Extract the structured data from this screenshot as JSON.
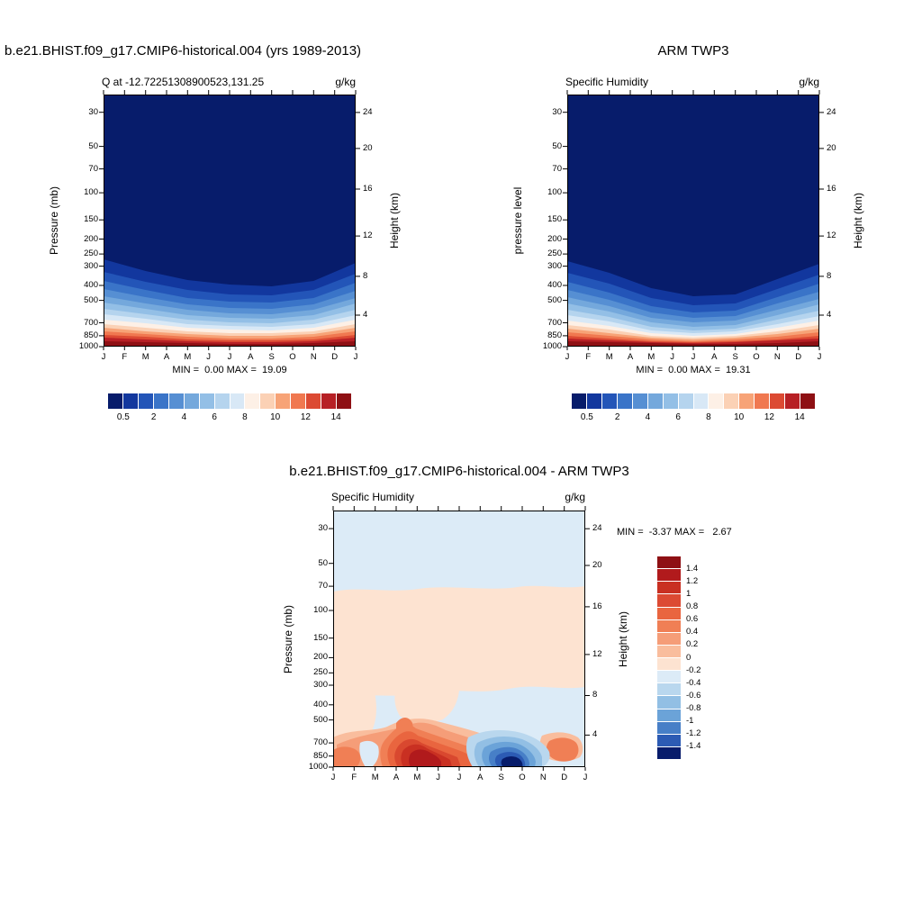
{
  "page": {
    "background": "#ffffff"
  },
  "charts": [
    {
      "title": "b.e21.BHIST.f09_g17.CMIP6-historical.004 (yrs 1989-2013)",
      "subtitle": "Q at -12.72251308900523,131.25",
      "units": "g/kg",
      "y_left_label": "Pressure (mb)",
      "y_right_label": "Height (km)",
      "pressure_ticks": [
        "30",
        "50",
        "70",
        "100",
        "150",
        "200",
        "250",
        "300",
        "400",
        "500",
        "700",
        "850",
        "1000"
      ],
      "height_ticks": [
        "24",
        "20",
        "16",
        "12",
        "8",
        "4"
      ],
      "month_ticks": [
        "J",
        "F",
        "M",
        "A",
        "M",
        "J",
        "J",
        "A",
        "S",
        "O",
        "N",
        "D",
        "J"
      ],
      "stats": "MIN =  0.00 MAX =  19.09",
      "colorbar": {
        "labels": [
          "0.5",
          "2",
          "4",
          "6",
          "8",
          "10",
          "12",
          "14"
        ],
        "colors": [
          "#071c6b",
          "#12379e",
          "#2355b8",
          "#3a74c8",
          "#568fd3",
          "#74a8dc",
          "#93bfe6",
          "#b5d4ee",
          "#d8e8f6",
          "#fdf0e6",
          "#fbd1b5",
          "#f7a377",
          "#f07850",
          "#dc4a33",
          "#b72025",
          "#8e1014"
        ]
      }
    },
    {
      "title": "ARM TWP3",
      "subtitle": "Specific Humidity",
      "units": "g/kg",
      "y_left_label": "pressure level",
      "y_right_label": "Height (km)",
      "pressure_ticks": [
        "30",
        "50",
        "70",
        "100",
        "150",
        "200",
        "250",
        "300",
        "400",
        "500",
        "700",
        "850",
        "1000"
      ],
      "height_ticks": [
        "24",
        "20",
        "16",
        "12",
        "8",
        "4"
      ],
      "month_ticks": [
        "J",
        "F",
        "M",
        "A",
        "M",
        "J",
        "J",
        "A",
        "S",
        "O",
        "N",
        "D",
        "J"
      ],
      "stats": "MIN =  0.00 MAX =  19.31",
      "colorbar": {
        "labels": [
          "0.5",
          "2",
          "4",
          "6",
          "8",
          "10",
          "12",
          "14"
        ],
        "colors": [
          "#071c6b",
          "#12379e",
          "#2355b8",
          "#3a74c8",
          "#568fd3",
          "#74a8dc",
          "#93bfe6",
          "#b5d4ee",
          "#d8e8f6",
          "#fdf0e6",
          "#fbd1b5",
          "#f7a377",
          "#f07850",
          "#dc4a33",
          "#b72025",
          "#8e1014"
        ]
      }
    },
    {
      "title": "b.e21.BHIST.f09_g17.CMIP6-historical.004 - ARM TWP3",
      "subtitle": "Specific Humidity",
      "units": "g/kg",
      "y_left_label": "Pressure (mb)",
      "y_right_label": "Height (km)",
      "pressure_ticks": [
        "30",
        "50",
        "70",
        "100",
        "150",
        "200",
        "250",
        "300",
        "400",
        "500",
        "700",
        "850",
        "1000"
      ],
      "height_ticks": [
        "24",
        "20",
        "16",
        "12",
        "8",
        "4"
      ],
      "month_ticks": [
        "J",
        "F",
        "M",
        "A",
        "M",
        "J",
        "J",
        "A",
        "S",
        "O",
        "N",
        "D",
        "J"
      ],
      "stats": "MIN =  -3.37 MAX =   2.67",
      "colorbar": {
        "labels": [
          "1.4",
          "1.2",
          "1",
          "0.8",
          "0.6",
          "0.4",
          "0.2",
          "0",
          "-0.2",
          "-0.4",
          "-0.6",
          "-0.8",
          "-1",
          "-1.2",
          "-1.4"
        ],
        "colors": [
          "#8e1014",
          "#b11a1c",
          "#c93022",
          "#dc4a33",
          "#e9653f",
          "#f07f55",
          "#f59d78",
          "#f9bd9d",
          "#fde3d1",
          "#dcebf7",
          "#b9d7ee",
          "#92bfe4",
          "#6ba3d8",
          "#477fc7",
          "#2c5bb4",
          "#071c6b"
        ]
      }
    }
  ],
  "chart_data": [
    {
      "type": "contour",
      "panel": "top-left",
      "title": "b.e21.BHIST.f09_g17.CMIP6-historical.004 (yrs 1989-2013)",
      "field": "Q at -12.72251308900523,131.25",
      "units": "g/kg",
      "x_ticks": [
        "J",
        "F",
        "M",
        "A",
        "M",
        "J",
        "J",
        "A",
        "S",
        "O",
        "N",
        "D",
        "J"
      ],
      "ylabel_left": "Pressure (mb)",
      "y_ticks_pressure_mb": [
        30,
        50,
        70,
        100,
        150,
        200,
        250,
        300,
        400,
        500,
        700,
        850,
        1000
      ],
      "y_scale": "log",
      "y_inverted": true,
      "ylabel_right": "Height (km)",
      "y_ticks_height_km": [
        24,
        20,
        16,
        12,
        8,
        4
      ],
      "min": 0.0,
      "max": 19.09,
      "contour_levels": [
        0.5,
        1,
        2,
        3,
        4,
        5,
        6,
        7,
        8,
        9,
        10,
        11,
        12,
        13,
        14
      ],
      "colorbar_labels": [
        0.5,
        2,
        4,
        6,
        8,
        10,
        12,
        14
      ],
      "palette": "blue-white-red"
    },
    {
      "type": "contour",
      "panel": "top-right",
      "title": "ARM TWP3",
      "field": "Specific Humidity",
      "units": "g/kg",
      "x_ticks": [
        "J",
        "F",
        "M",
        "A",
        "M",
        "J",
        "J",
        "A",
        "S",
        "O",
        "N",
        "D",
        "J"
      ],
      "ylabel_left": "pressure level",
      "y_ticks_pressure_mb": [
        30,
        50,
        70,
        100,
        150,
        200,
        250,
        300,
        400,
        500,
        700,
        850,
        1000
      ],
      "y_scale": "log",
      "y_inverted": true,
      "ylabel_right": "Height (km)",
      "y_ticks_height_km": [
        24,
        20,
        16,
        12,
        8,
        4
      ],
      "min": 0.0,
      "max": 19.31,
      "contour_levels": [
        0.5,
        1,
        2,
        3,
        4,
        5,
        6,
        7,
        8,
        9,
        10,
        11,
        12,
        13,
        14
      ],
      "colorbar_labels": [
        0.5,
        2,
        4,
        6,
        8,
        10,
        12,
        14
      ],
      "palette": "blue-white-red"
    },
    {
      "type": "contour",
      "panel": "bottom",
      "title": "b.e21.BHIST.f09_g17.CMIP6-historical.004 - ARM TWP3",
      "field": "Specific Humidity",
      "units": "g/kg",
      "x_ticks": [
        "J",
        "F",
        "M",
        "A",
        "M",
        "J",
        "J",
        "A",
        "S",
        "O",
        "N",
        "D",
        "J"
      ],
      "ylabel_left": "Pressure (mb)",
      "y_ticks_pressure_mb": [
        30,
        50,
        70,
        100,
        150,
        200,
        250,
        300,
        400,
        500,
        700,
        850,
        1000
      ],
      "y_scale": "log",
      "y_inverted": true,
      "ylabel_right": "Height (km)",
      "y_ticks_height_km": [
        24,
        20,
        16,
        12,
        8,
        4
      ],
      "min": -3.37,
      "max": 2.67,
      "contour_levels": [
        -1.4,
        -1.2,
        -1,
        -0.8,
        -0.6,
        -0.4,
        -0.2,
        0,
        0.2,
        0.4,
        0.6,
        0.8,
        1,
        1.2,
        1.4
      ],
      "colorbar_labels": [
        1.4,
        1.2,
        1,
        0.8,
        0.6,
        0.4,
        0.2,
        0,
        -0.2,
        -0.4,
        -0.6,
        -0.8,
        -1,
        -1.2,
        -1.4
      ],
      "palette": "red-white-blue"
    }
  ]
}
